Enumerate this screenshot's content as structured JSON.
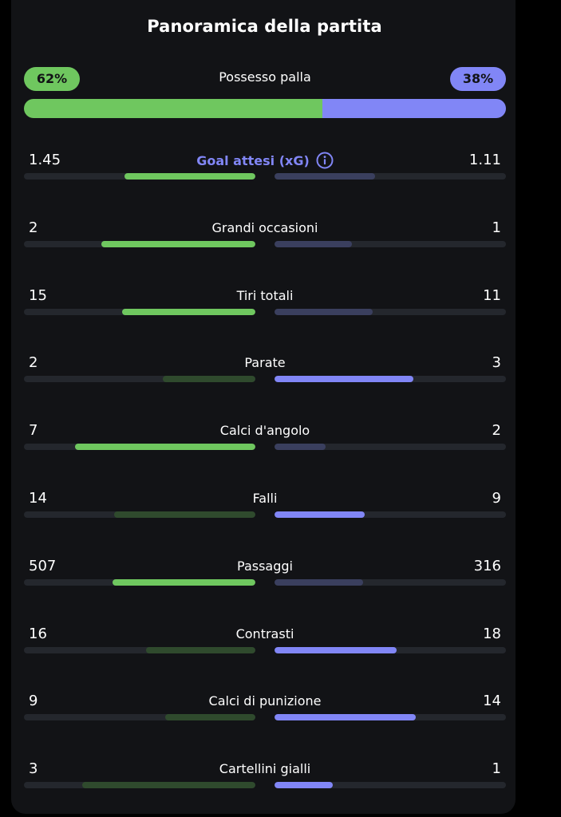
{
  "title": "Panoramica della partita",
  "colors": {
    "home_strong": "#6fc75f",
    "home_weak": "#2f4a2d",
    "away_strong": "#8186f6",
    "away_weak": "#3a3f5e"
  },
  "possession": {
    "label": "Possesso palla",
    "home": "62%",
    "away": "38%",
    "home_fraction": 0.62,
    "away_fraction": 0.38
  },
  "stats": [
    {
      "label": "Goal attesi (xG)",
      "home": "1.45",
      "away": "1.11",
      "home_share": 0.566,
      "away_share": 0.434,
      "leader": "home",
      "accent": true,
      "icon": "info-icon"
    },
    {
      "label": "Grandi occasioni",
      "home": "2",
      "away": "1",
      "home_share": 0.667,
      "away_share": 0.333,
      "leader": "home"
    },
    {
      "label": "Tiri totali",
      "home": "15",
      "away": "11",
      "home_share": 0.577,
      "away_share": 0.423,
      "leader": "home"
    },
    {
      "label": "Parate",
      "home": "2",
      "away": "3",
      "home_share": 0.4,
      "away_share": 0.6,
      "leader": "away"
    },
    {
      "label": "Calci d'angolo",
      "home": "7",
      "away": "2",
      "home_share": 0.778,
      "away_share": 0.222,
      "leader": "home"
    },
    {
      "label": "Falli",
      "home": "14",
      "away": "9",
      "home_share": 0.609,
      "away_share": 0.391,
      "leader": "away"
    },
    {
      "label": "Passaggi",
      "home": "507",
      "away": "316",
      "home_share": 0.616,
      "away_share": 0.384,
      "leader": "home"
    },
    {
      "label": "Contrasti",
      "home": "16",
      "away": "18",
      "home_share": 0.471,
      "away_share": 0.529,
      "leader": "away"
    },
    {
      "label": "Calci di punizione",
      "home": "9",
      "away": "14",
      "home_share": 0.391,
      "away_share": 0.609,
      "leader": "away"
    },
    {
      "label": "Cartellini gialli",
      "home": "3",
      "away": "1",
      "home_share": 0.75,
      "away_share": 0.25,
      "leader": "away"
    }
  ]
}
